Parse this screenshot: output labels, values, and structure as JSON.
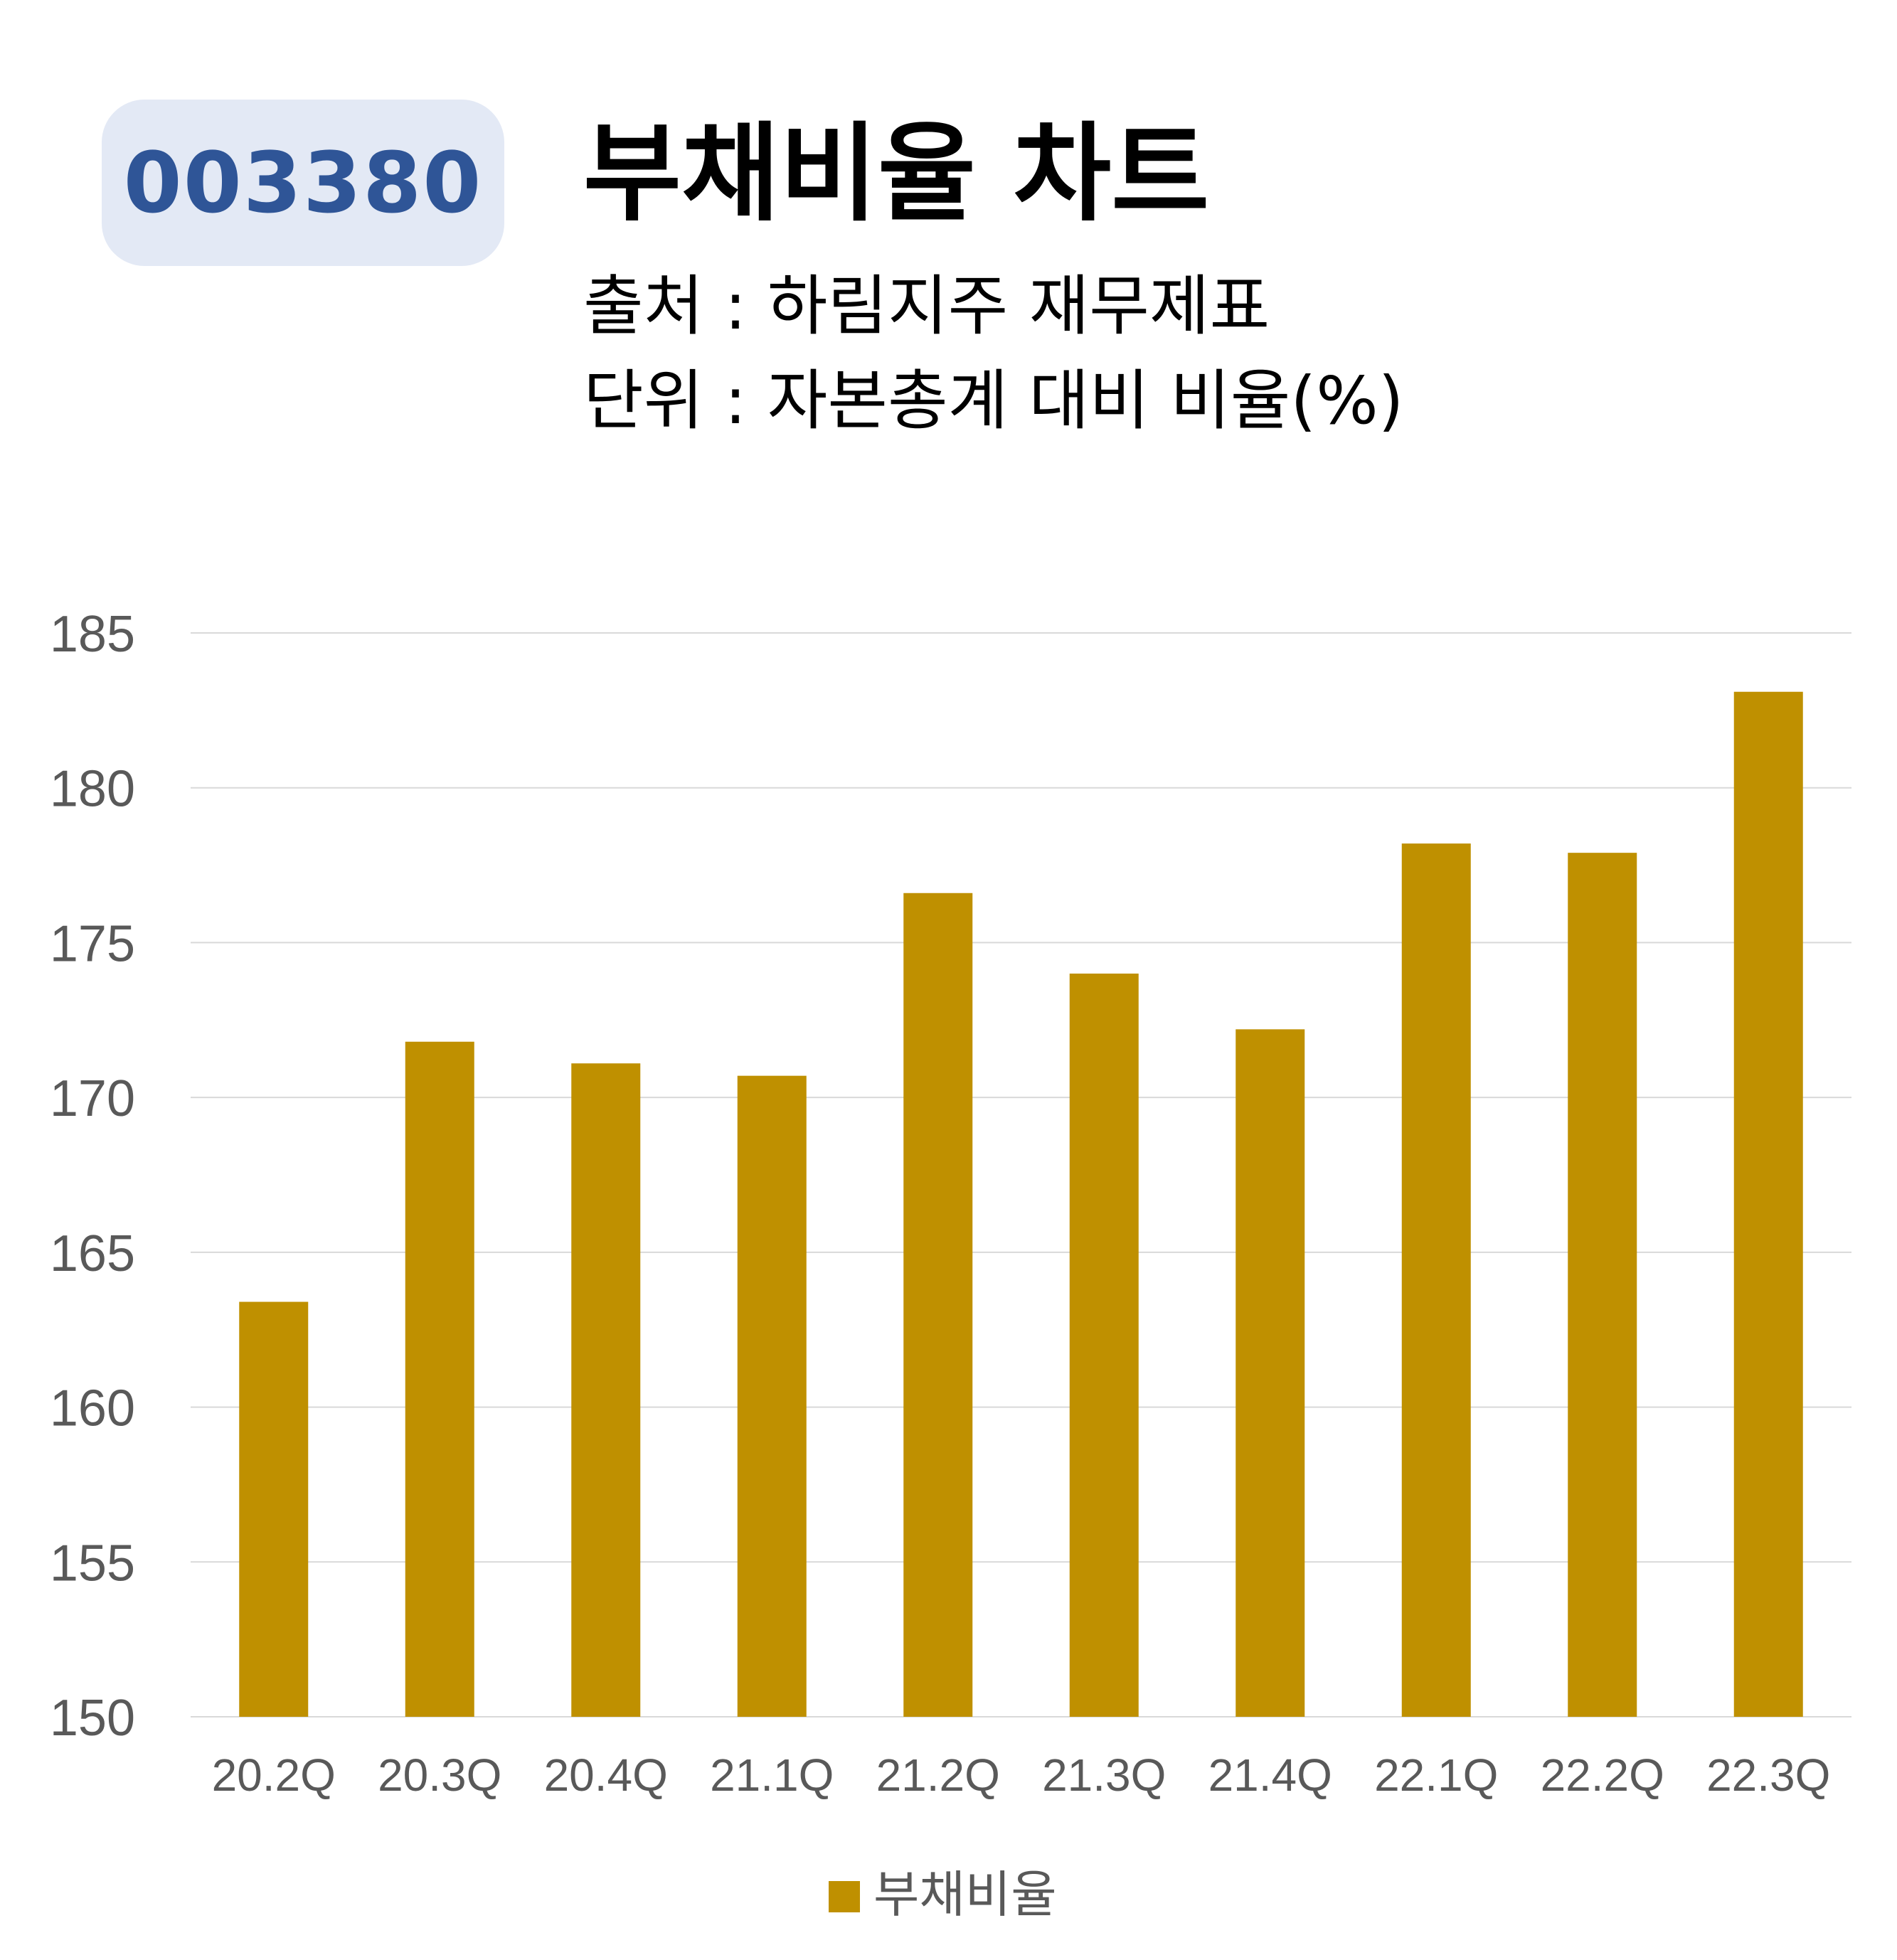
{
  "header": {
    "code": "003380",
    "title": "부채비율 차트",
    "source_line": "출처 : 하림지주 재무제표",
    "unit_line": "단위 : 자본총계 대비 비율(%)"
  },
  "colors": {
    "bar": "#bf9000",
    "badge_bg": "#e3e9f5",
    "badge_text": "#2f5597",
    "grid": "#d9d9d9",
    "tick": "#595959"
  },
  "chart_data": {
    "type": "bar",
    "categories": [
      "20.2Q",
      "20.3Q",
      "20.4Q",
      "21.1Q",
      "21.2Q",
      "21.3Q",
      "21.4Q",
      "22.1Q",
      "22.2Q",
      "22.3Q"
    ],
    "series": [
      {
        "name": "부채비율",
        "values": [
          163.4,
          171.8,
          171.1,
          170.7,
          176.6,
          174.0,
          172.2,
          178.2,
          177.9,
          183.1
        ]
      }
    ],
    "ylim": [
      150,
      185
    ],
    "yticks": [
      150,
      155,
      160,
      165,
      170,
      175,
      180,
      185
    ],
    "grid": true,
    "legend": "bottom"
  }
}
